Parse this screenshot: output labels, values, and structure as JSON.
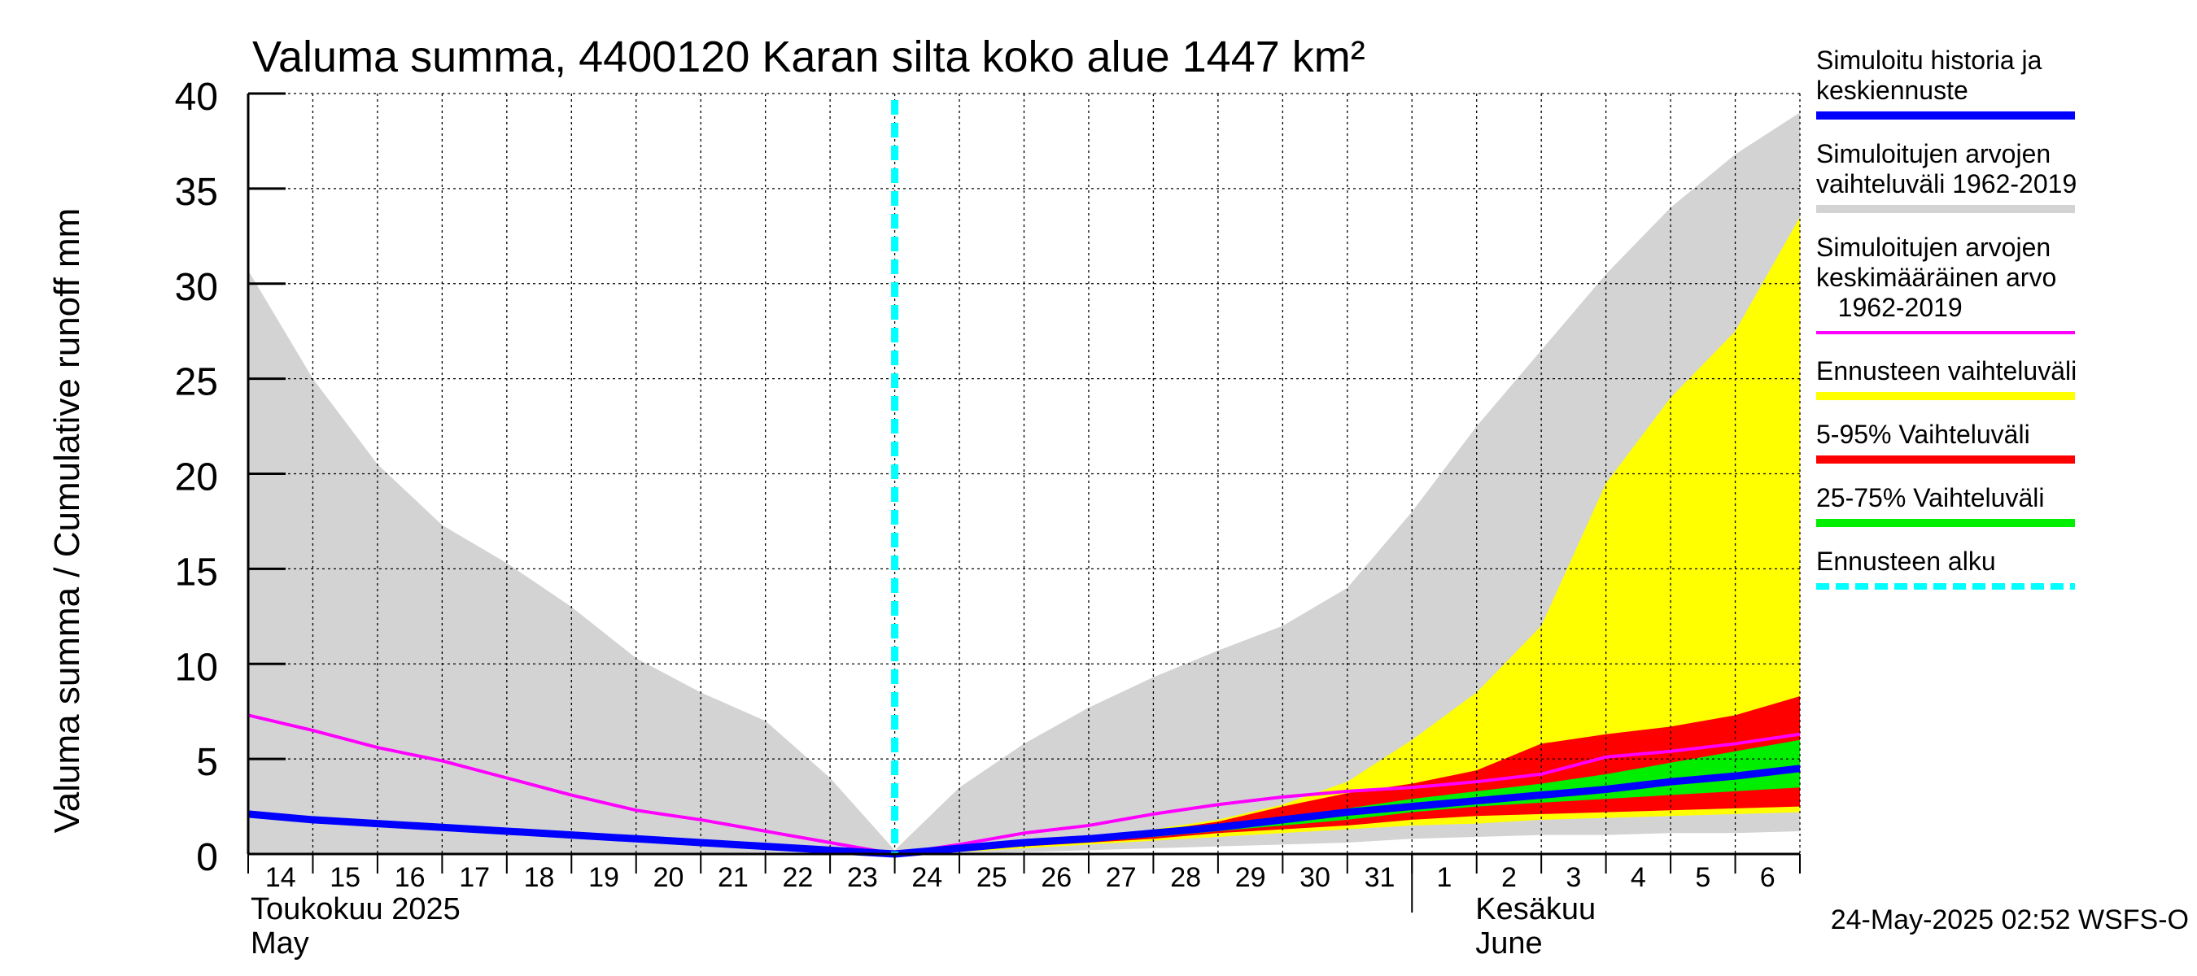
{
  "chart_data": {
    "type": "area",
    "title": "Valuma summa, 4400120 Karan silta koko alue 1447 km²",
    "ylabel": "Valuma summa / Cumulative runoff    mm",
    "ylim": [
      0,
      40
    ],
    "yticks": [
      0,
      5,
      10,
      15,
      20,
      25,
      30,
      35,
      40
    ],
    "xlim": [
      "2025-05-14",
      "2025-06-07"
    ],
    "x_tick_labels": [
      "14",
      "15",
      "16",
      "17",
      "18",
      "19",
      "20",
      "21",
      "22",
      "23",
      "24",
      "25",
      "26",
      "27",
      "28",
      "29",
      "30",
      "31",
      "1",
      "2",
      "3",
      "4",
      "5",
      "6"
    ],
    "month_labels": [
      {
        "fi": "Toukokuu  2025",
        "en": "May"
      },
      {
        "fi": "Kesäkuu",
        "en": "June"
      }
    ],
    "grid": true,
    "legend_placement": "right",
    "forecast_start": "2025-05-24",
    "footer": "24-May-2025 02:52 WSFS-O",
    "series": [
      {
        "name": "Simuloitujen arvojen vaihteluväli 1962-2019",
        "kind": "band",
        "color": "#d3d3d3",
        "x": [
          "2025-05-14",
          "2025-05-15",
          "2025-05-16",
          "2025-05-17",
          "2025-05-18",
          "2025-05-19",
          "2025-05-20",
          "2025-05-21",
          "2025-05-22",
          "2025-05-23",
          "2025-05-24",
          "2025-05-25",
          "2025-05-26",
          "2025-05-27",
          "2025-05-28",
          "2025-05-29",
          "2025-05-30",
          "2025-05-31",
          "2025-06-01",
          "2025-06-02",
          "2025-06-03",
          "2025-06-04",
          "2025-06-05",
          "2025-06-06",
          "2025-06-07"
        ],
        "upper": [
          30.7,
          25.0,
          20.5,
          17.3,
          15.3,
          13.0,
          10.3,
          8.5,
          7.0,
          4.0,
          0.2,
          3.5,
          5.8,
          7.7,
          9.3,
          10.7,
          12.0,
          14.0,
          18.0,
          22.5,
          26.5,
          30.5,
          34.0,
          36.8,
          39.0
        ],
        "lower": [
          0.0,
          0.0,
          0.0,
          0.0,
          0.0,
          0.0,
          0.0,
          0.0,
          0.0,
          0.0,
          0.0,
          0.0,
          0.1,
          0.2,
          0.3,
          0.4,
          0.5,
          0.6,
          0.8,
          0.9,
          1.0,
          1.0,
          1.1,
          1.1,
          1.2
        ]
      },
      {
        "name": "Ennusteen vaihteluväli",
        "kind": "band",
        "color": "#ffff00",
        "x": [
          "2025-05-24",
          "2025-05-25",
          "2025-05-26",
          "2025-05-27",
          "2025-05-28",
          "2025-05-29",
          "2025-05-30",
          "2025-05-31",
          "2025-06-01",
          "2025-06-02",
          "2025-06-03",
          "2025-06-04",
          "2025-06-05",
          "2025-06-06",
          "2025-06-07"
        ],
        "upper": [
          0.0,
          0.3,
          0.6,
          0.9,
          1.3,
          1.8,
          2.6,
          3.8,
          6.0,
          8.5,
          12.0,
          19.5,
          24.0,
          27.5,
          33.5
        ],
        "lower": [
          0.0,
          0.1,
          0.3,
          0.5,
          0.7,
          0.9,
          1.1,
          1.3,
          1.5,
          1.6,
          1.8,
          1.9,
          2.0,
          2.1,
          2.2
        ]
      },
      {
        "name": "5-95% Vaihteluväli",
        "kind": "band",
        "color": "#ff0000",
        "x": [
          "2025-05-24",
          "2025-05-25",
          "2025-05-26",
          "2025-05-27",
          "2025-05-28",
          "2025-05-29",
          "2025-05-30",
          "2025-05-31",
          "2025-06-01",
          "2025-06-02",
          "2025-06-03",
          "2025-06-04",
          "2025-06-05",
          "2025-06-06",
          "2025-06-07"
        ],
        "upper": [
          0.0,
          0.3,
          0.6,
          0.9,
          1.2,
          1.7,
          2.5,
          3.2,
          3.7,
          4.4,
          5.8,
          6.3,
          6.7,
          7.3,
          8.3
        ],
        "lower": [
          0.0,
          0.2,
          0.4,
          0.6,
          0.8,
          1.1,
          1.3,
          1.5,
          1.8,
          2.0,
          2.1,
          2.2,
          2.3,
          2.4,
          2.5
        ]
      },
      {
        "name": "25-75% Vaihteluväli",
        "kind": "band",
        "color": "#00ee00",
        "x": [
          "2025-05-24",
          "2025-05-25",
          "2025-05-26",
          "2025-05-27",
          "2025-05-28",
          "2025-05-29",
          "2025-05-30",
          "2025-05-31",
          "2025-06-01",
          "2025-06-02",
          "2025-06-03",
          "2025-06-04",
          "2025-06-05",
          "2025-06-06",
          "2025-06-07"
        ],
        "upper": [
          0.0,
          0.3,
          0.5,
          0.8,
          1.1,
          1.5,
          1.9,
          2.4,
          2.9,
          3.3,
          3.7,
          4.2,
          4.8,
          5.4,
          6.0
        ],
        "lower": [
          0.0,
          0.2,
          0.4,
          0.7,
          0.9,
          1.2,
          1.5,
          1.8,
          2.2,
          2.5,
          2.7,
          2.9,
          3.1,
          3.3,
          3.5
        ]
      },
      {
        "name": "Simuloitujen arvojen keskimääräinen arvo 1962-2019",
        "kind": "line",
        "color": "#ff00ff",
        "x": [
          "2025-05-14",
          "2025-05-15",
          "2025-05-16",
          "2025-05-17",
          "2025-05-18",
          "2025-05-19",
          "2025-05-20",
          "2025-05-21",
          "2025-05-22",
          "2025-05-23",
          "2025-05-24",
          "2025-05-25",
          "2025-05-26",
          "2025-05-27",
          "2025-05-28",
          "2025-05-29",
          "2025-05-30",
          "2025-05-31",
          "2025-06-01",
          "2025-06-02",
          "2025-06-03",
          "2025-06-04",
          "2025-06-05",
          "2025-06-06",
          "2025-06-07"
        ],
        "values": [
          7.3,
          6.5,
          5.6,
          4.9,
          4.0,
          3.1,
          2.3,
          1.8,
          1.2,
          0.6,
          0.0,
          0.5,
          1.1,
          1.5,
          2.1,
          2.6,
          3.0,
          3.3,
          3.5,
          3.8,
          4.2,
          5.1,
          5.4,
          5.8,
          6.3
        ]
      },
      {
        "name": "Simuloitu historia ja keskiennuste",
        "kind": "line",
        "color": "#0000ff",
        "x": [
          "2025-05-14",
          "2025-05-15",
          "2025-05-16",
          "2025-05-17",
          "2025-05-18",
          "2025-05-19",
          "2025-05-20",
          "2025-05-21",
          "2025-05-22",
          "2025-05-23",
          "2025-05-24",
          "2025-05-25",
          "2025-05-26",
          "2025-05-27",
          "2025-05-28",
          "2025-05-29",
          "2025-05-30",
          "2025-05-31",
          "2025-06-01",
          "2025-06-02",
          "2025-06-03",
          "2025-06-04",
          "2025-06-05",
          "2025-06-06",
          "2025-06-07"
        ],
        "values": [
          2.1,
          1.8,
          1.6,
          1.4,
          1.2,
          1.0,
          0.8,
          0.6,
          0.4,
          0.2,
          0.0,
          0.3,
          0.6,
          0.8,
          1.1,
          1.4,
          1.8,
          2.2,
          2.5,
          2.8,
          3.1,
          3.4,
          3.8,
          4.1,
          4.5
        ]
      }
    ],
    "legend": [
      {
        "lines": [
          "Simuloitu historia ja",
          "keskiennuste"
        ],
        "color": "#0000ff",
        "style": "solid"
      },
      {
        "lines": [
          "Simuloitujen arvojen",
          "vaihteluväli 1962-2019"
        ],
        "color": "#d3d3d3",
        "style": "solid"
      },
      {
        "lines": [
          "Simuloitujen arvojen",
          "keskimääräinen arvo",
          "   1962-2019"
        ],
        "color": "#ff00ff",
        "style": "thin"
      },
      {
        "lines": [
          "Ennusteen vaihteluväli"
        ],
        "color": "#ffff00",
        "style": "solid"
      },
      {
        "lines": [
          "5-95% Vaihteluväli"
        ],
        "color": "#ff0000",
        "style": "solid"
      },
      {
        "lines": [
          "25-75% Vaihteluväli"
        ],
        "color": "#00ee00",
        "style": "solid"
      },
      {
        "lines": [
          "Ennusteen alku"
        ],
        "color": "#00ffff",
        "style": "dashed"
      }
    ]
  }
}
